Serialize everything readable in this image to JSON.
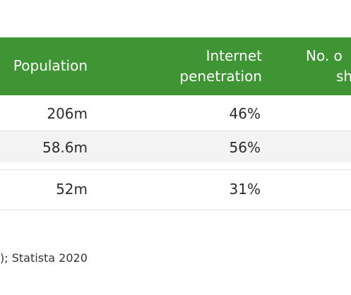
{
  "table": {
    "headers": {
      "population": "Population",
      "internet_line1": "Internet",
      "internet_line2": "penetration",
      "shoppers_line1": "No. o",
      "shoppers_line2": "sh"
    },
    "rows": [
      {
        "population": "206m",
        "internet_penetration": "46%"
      },
      {
        "population": "58.6m",
        "internet_penetration": "56%"
      },
      {
        "population": "52m",
        "internet_penetration": "31%"
      }
    ]
  },
  "footer": {
    "source": "); Statista 2020"
  },
  "colors": {
    "header_bg": "#3f9533",
    "alt_row_bg": "#f3f3f3"
  }
}
